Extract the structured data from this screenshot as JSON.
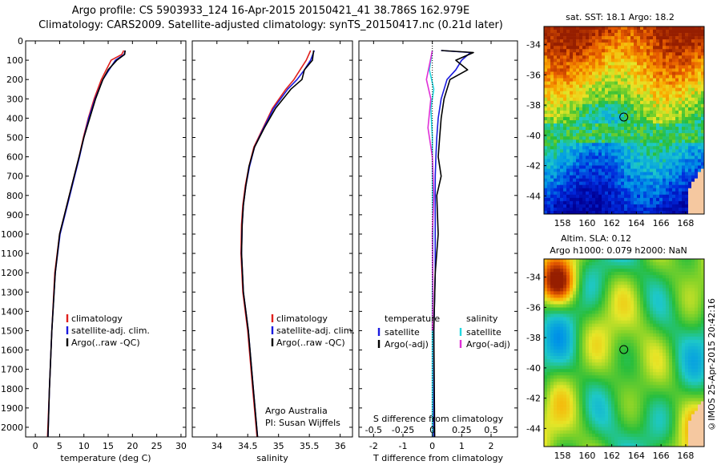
{
  "header": {
    "title_line1": "Argo profile: CS 5903933_124 16-Apr-2015 20150421_41 38.786S 162.979E",
    "title_line2": "Climatology: CARS2009. Satellite-adjusted climatology: synTS_20150417.nc (0.21d later)"
  },
  "footer": {
    "credit": "©IMOS 25-Apr-2015 20:42:16"
  },
  "colors": {
    "climatology": "#e0201c",
    "satellite": "#1a1adf",
    "argo": "#000000",
    "satellite_s": "#22d8e0",
    "argo_s": "#e030d8"
  },
  "chart_data": [
    {
      "type": "line",
      "id": "temperature",
      "xlabel": "temperature (deg C)",
      "ylabel": "",
      "xlim": [
        -2,
        31
      ],
      "ylim": [
        2050,
        0
      ],
      "xticks": [
        0,
        5,
        10,
        15,
        20,
        25,
        30
      ],
      "yticks": [
        0,
        100,
        200,
        300,
        400,
        500,
        600,
        700,
        800,
        900,
        1000,
        1100,
        1200,
        1300,
        1400,
        1500,
        1600,
        1700,
        1800,
        1900,
        2000
      ],
      "legend": [
        "climatology",
        "satellite-adj. clim.",
        "Argo(..raw -QC)"
      ],
      "series": [
        {
          "name": "climatology",
          "color": "#e0201c",
          "x": [
            18.2,
            17.8,
            15.6,
            14.6,
            13.6,
            12.1,
            10.9,
            9.9,
            9.0,
            8.0,
            7.0,
            6.0,
            5.0,
            4.0,
            3.4,
            2.9,
            2.5
          ],
          "y": [
            50,
            70,
            100,
            150,
            200,
            300,
            400,
            500,
            600,
            700,
            800,
            900,
            1000,
            1200,
            1500,
            1800,
            2050
          ]
        },
        {
          "name": "satellite-adj. clim.",
          "color": "#1a1adf",
          "x": [
            18.5,
            18.3,
            16.5,
            15.2,
            13.9,
            12.3,
            11.0,
            10.0,
            9.1,
            8.1,
            7.1,
            6.1,
            5.1,
            4.1,
            3.4,
            2.9,
            2.6
          ],
          "y": [
            50,
            70,
            100,
            150,
            200,
            300,
            400,
            500,
            600,
            700,
            800,
            900,
            1000,
            1200,
            1500,
            1800,
            2050
          ]
        },
        {
          "name": "Argo(..raw -QC)",
          "color": "#000000",
          "x": [
            18.5,
            18.4,
            16.8,
            15.0,
            13.9,
            12.4,
            11.2,
            10.0,
            9.0,
            8.0,
            7.0,
            6.0,
            5.0,
            4.1,
            3.4,
            2.9,
            2.6
          ],
          "y": [
            50,
            70,
            100,
            150,
            200,
            300,
            400,
            500,
            600,
            700,
            800,
            900,
            1000,
            1200,
            1500,
            1800,
            2050
          ]
        }
      ]
    },
    {
      "type": "line",
      "id": "salinity",
      "xlabel": "salinity",
      "ylabel": "",
      "xlim": [
        33.6,
        36.2
      ],
      "ylim": [
        2050,
        0
      ],
      "xticks": [
        34,
        34.5,
        35,
        35.5,
        36
      ],
      "legend": [
        "climatology",
        "satellite-adj. clim.",
        "Argo(..raw -QC)"
      ],
      "annotation": [
        "Argo Australia",
        "PI: Susan Wijffels"
      ],
      "series": [
        {
          "name": "climatology",
          "color": "#e0201c",
          "x": [
            35.52,
            35.45,
            35.35,
            35.25,
            35.12,
            34.9,
            34.75,
            34.6,
            34.52,
            34.46,
            34.42,
            34.4,
            34.39,
            34.42,
            34.5,
            34.58,
            34.65
          ],
          "y": [
            50,
            100,
            150,
            200,
            250,
            350,
            450,
            550,
            650,
            750,
            850,
            950,
            1100,
            1300,
            1500,
            1800,
            2050
          ]
        },
        {
          "name": "satellite-adj. clim.",
          "color": "#1a1adf",
          "x": [
            35.58,
            35.52,
            35.42,
            35.3,
            35.15,
            34.92,
            34.76,
            34.61,
            34.53,
            34.47,
            34.43,
            34.41,
            34.4,
            34.43,
            34.51,
            34.59,
            34.66
          ],
          "y": [
            50,
            100,
            150,
            200,
            250,
            350,
            450,
            550,
            650,
            750,
            850,
            950,
            1100,
            1300,
            1500,
            1800,
            2050
          ]
        },
        {
          "name": "Argo(..raw -QC)",
          "color": "#000000",
          "x": [
            35.57,
            35.55,
            35.42,
            35.38,
            35.2,
            34.95,
            34.77,
            34.61,
            34.52,
            34.47,
            34.43,
            34.41,
            34.4,
            34.43,
            34.51,
            34.59,
            34.66
          ],
          "y": [
            50,
            100,
            150,
            200,
            250,
            350,
            450,
            550,
            650,
            750,
            850,
            950,
            1100,
            1300,
            1500,
            1800,
            2050
          ]
        }
      ]
    },
    {
      "type": "line",
      "id": "difference",
      "xlabel": "T difference from climatology",
      "xlabel2": "S difference from climatology",
      "xlim": [
        -2.5,
        2.9
      ],
      "ylim": [
        2050,
        0
      ],
      "xticks": [
        -2,
        -1,
        0,
        1,
        2
      ],
      "xticks2": [
        "-0.5",
        "-0.25",
        "0",
        "0.25",
        "0.5"
      ],
      "legend_t_title": "temperature",
      "legend_s_title": "salinity",
      "legend_t": [
        "satellite",
        "Argo(-adj)"
      ],
      "legend_s": [
        "satellite",
        "Argo(-adj)"
      ],
      "series": [
        {
          "name": "satellite",
          "group": "temperature",
          "color": "#1a1adf",
          "x": [
            0.3,
            1.3,
            1.0,
            0.8,
            0.5,
            0.3,
            0.2,
            0.15,
            0.12,
            0.1,
            0.1,
            0.1,
            0.1,
            0.05,
            0.05
          ],
          "y": [
            50,
            60,
            100,
            150,
            200,
            300,
            400,
            500,
            600,
            700,
            800,
            1000,
            1200,
            1500,
            2050
          ]
        },
        {
          "name": "Argo(-adj)",
          "group": "temperature",
          "color": "#000000",
          "x": [
            0.3,
            1.4,
            0.8,
            1.2,
            0.6,
            0.4,
            0.3,
            0.25,
            0.2,
            0.3,
            0.15,
            0.2,
            0.1,
            0.05,
            0.08
          ],
          "y": [
            50,
            60,
            100,
            150,
            200,
            300,
            400,
            500,
            600,
            700,
            800,
            1000,
            1200,
            1500,
            2050
          ]
        },
        {
          "name": "satellite",
          "group": "salinity",
          "color": "#22d8e0",
          "x": [
            0.0,
            -0.1,
            0.05,
            -0.05,
            0.0,
            0.0,
            0.02,
            0.0,
            0.0,
            0.0
          ],
          "y": [
            50,
            150,
            250,
            350,
            500,
            700,
            1000,
            1300,
            1600,
            2050
          ]
        },
        {
          "name": "Argo(-adj)",
          "group": "salinity",
          "color": "#e030d8",
          "x": [
            0.0,
            -0.2,
            -0.05,
            -0.15,
            0.0,
            0.05,
            0.0,
            0.02,
            0.0
          ],
          "y": [
            50,
            200,
            300,
            450,
            600,
            800,
            1000,
            1300,
            1500
          ]
        }
      ]
    },
    {
      "type": "heatmap",
      "id": "sst_map",
      "title": "sat. SST: 18.1 Argo: 18.2",
      "xticks": [
        158,
        160,
        162,
        164,
        166,
        168
      ],
      "yticks": [
        -34,
        -36,
        -38,
        -40,
        -42,
        -44
      ],
      "xlim": [
        156.5,
        169.5
      ],
      "ylim": [
        -45.2,
        -32.8
      ],
      "marker": {
        "lon": 162.979,
        "lat": -38.786
      }
    },
    {
      "type": "heatmap",
      "id": "sla_map",
      "title_line1": "Altim. SLA: 0.12",
      "title_line2": "Argo h1000: 0.079 h2000: NaN",
      "xticks": [
        158,
        160,
        162,
        164,
        166,
        168
      ],
      "yticks": [
        -34,
        -36,
        -38,
        -40,
        -42,
        -44
      ],
      "xlim": [
        156.5,
        169.5
      ],
      "ylim": [
        -45.2,
        -32.8
      ],
      "marker": {
        "lon": 162.979,
        "lat": -38.786
      }
    }
  ]
}
